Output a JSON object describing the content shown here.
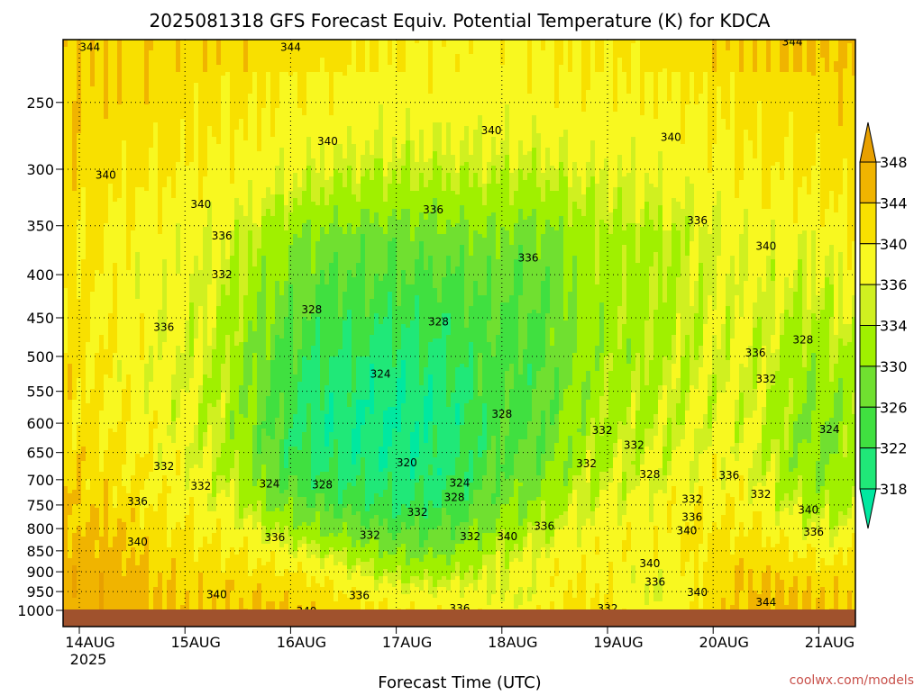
{
  "chart_data": {
    "type": "heatmap",
    "title": "2025081318 GFS Forecast Equiv. Potential Temperature (K) for KDCA",
    "xlabel": "Forecast Time (UTC)",
    "ylabel": "",
    "credit": "coolwx.com/models",
    "x_ticks": [
      "14AUG",
      "15AUG",
      "16AUG",
      "17AUG",
      "18AUG",
      "19AUG",
      "20AUG",
      "21AUG"
    ],
    "x_year_label": "2025",
    "y_ticks": [
      250,
      300,
      350,
      400,
      450,
      500,
      550,
      600,
      650,
      700,
      750,
      800,
      850,
      900,
      950,
      1000
    ],
    "y_scale": "log-pressure (hPa, inverted)",
    "y_range": [
      1000,
      200
    ],
    "x_range_days": [
      -0.05,
      7.25
    ],
    "grid": true,
    "colorbar": {
      "levels": [
        318,
        322,
        326,
        330,
        334,
        336,
        340,
        344,
        348
      ],
      "tick_labels": [
        "348",
        "344",
        "340",
        "336",
        "334",
        "330",
        "326",
        "322",
        "318"
      ],
      "colors": [
        "#00e8a0",
        "#20e878",
        "#40e040",
        "#70e030",
        "#a0f000",
        "#d0f020",
        "#f8f820",
        "#f8e000",
        "#f0b400",
        "#e8a000"
      ],
      "extend": "both",
      "placement": "right"
    },
    "ground_color": "#a0522d",
    "contour_labels": [
      {
        "text": "344",
        "day": 0.1,
        "p": 215
      },
      {
        "text": "344",
        "day": 2.0,
        "p": 215
      },
      {
        "text": "344",
        "day": 5.6,
        "p": 205
      },
      {
        "text": "344",
        "day": 6.75,
        "p": 212
      },
      {
        "text": "340",
        "day": 0.25,
        "p": 305
      },
      {
        "text": "340",
        "day": 1.15,
        "p": 330
      },
      {
        "text": "340",
        "day": 2.35,
        "p": 278
      },
      {
        "text": "340",
        "day": 3.9,
        "p": 270
      },
      {
        "text": "340",
        "day": 5.6,
        "p": 275
      },
      {
        "text": "340",
        "day": 6.5,
        "p": 370
      },
      {
        "text": "336",
        "day": 1.35,
        "p": 360
      },
      {
        "text": "336",
        "day": 3.35,
        "p": 335
      },
      {
        "text": "336",
        "day": 4.25,
        "p": 382
      },
      {
        "text": "336",
        "day": 5.85,
        "p": 345
      },
      {
        "text": "336",
        "day": 0.8,
        "p": 462
      },
      {
        "text": "332",
        "day": 1.35,
        "p": 400
      },
      {
        "text": "328",
        "day": 2.2,
        "p": 440
      },
      {
        "text": "328",
        "day": 3.4,
        "p": 455
      },
      {
        "text": "324",
        "day": 2.85,
        "p": 525
      },
      {
        "text": "320",
        "day": 3.1,
        "p": 668
      },
      {
        "text": "324",
        "day": 1.8,
        "p": 708
      },
      {
        "text": "328",
        "day": 2.3,
        "p": 710
      },
      {
        "text": "324",
        "day": 3.6,
        "p": 706
      },
      {
        "text": "328",
        "day": 3.55,
        "p": 735
      },
      {
        "text": "332",
        "day": 3.2,
        "p": 765
      },
      {
        "text": "332",
        "day": 0.8,
        "p": 675
      },
      {
        "text": "332",
        "day": 1.15,
        "p": 712
      },
      {
        "text": "336",
        "day": 0.55,
        "p": 743
      },
      {
        "text": "340",
        "day": 0.55,
        "p": 830
      },
      {
        "text": "340",
        "day": 1.3,
        "p": 958
      },
      {
        "text": "336",
        "day": 1.85,
        "p": 820
      },
      {
        "text": "332",
        "day": 2.75,
        "p": 815
      },
      {
        "text": "336",
        "day": 2.65,
        "p": 960
      },
      {
        "text": "340",
        "day": 2.15,
        "p": 1002
      },
      {
        "text": "332",
        "day": 3.7,
        "p": 818
      },
      {
        "text": "340",
        "day": 4.05,
        "p": 818
      },
      {
        "text": "336",
        "day": 4.4,
        "p": 795
      },
      {
        "text": "336",
        "day": 3.6,
        "p": 995
      },
      {
        "text": "328",
        "day": 4.0,
        "p": 585
      },
      {
        "text": "332",
        "day": 4.95,
        "p": 612
      },
      {
        "text": "332",
        "day": 5.25,
        "p": 637
      },
      {
        "text": "332",
        "day": 4.8,
        "p": 670
      },
      {
        "text": "328",
        "day": 5.4,
        "p": 690
      },
      {
        "text": "336",
        "day": 6.4,
        "p": 495
      },
      {
        "text": "332",
        "day": 6.5,
        "p": 532
      },
      {
        "text": "328",
        "day": 6.85,
        "p": 478
      },
      {
        "text": "324",
        "day": 7.1,
        "p": 610
      },
      {
        "text": "336",
        "day": 6.15,
        "p": 692
      },
      {
        "text": "332",
        "day": 5.8,
        "p": 738
      },
      {
        "text": "332",
        "day": 6.45,
        "p": 728
      },
      {
        "text": "336",
        "day": 5.8,
        "p": 775
      },
      {
        "text": "340",
        "day": 5.75,
        "p": 805
      },
      {
        "text": "340",
        "day": 6.9,
        "p": 760
      },
      {
        "text": "336",
        "day": 6.95,
        "p": 808
      },
      {
        "text": "340",
        "day": 5.4,
        "p": 880
      },
      {
        "text": "336",
        "day": 5.45,
        "p": 925
      },
      {
        "text": "340",
        "day": 5.85,
        "p": 952
      },
      {
        "text": "344",
        "day": 6.5,
        "p": 978
      },
      {
        "text": "332",
        "day": 5.0,
        "p": 995
      }
    ]
  }
}
